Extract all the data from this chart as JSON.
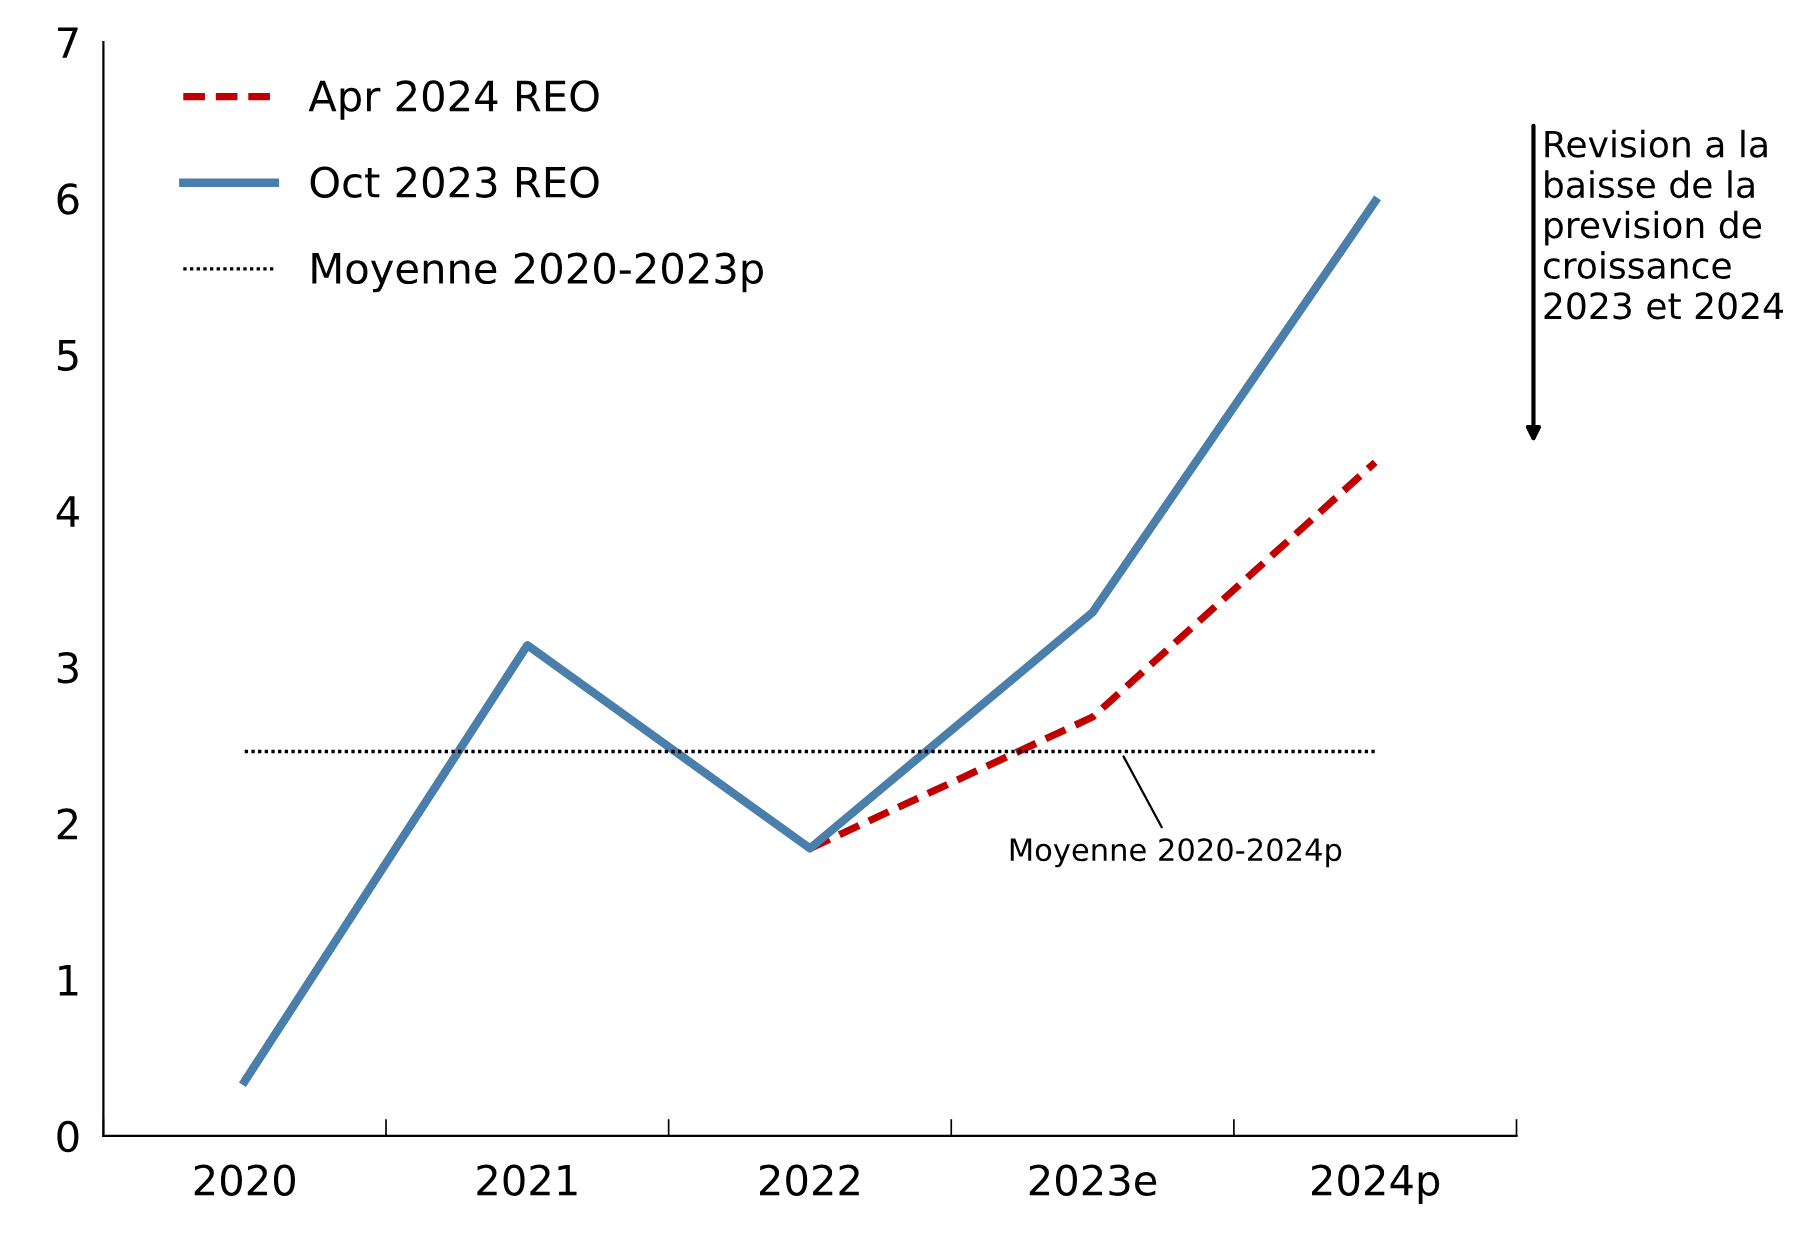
{
  "chart_data": {
    "type": "line",
    "categories": [
      "2020",
      "2021",
      "2022",
      "2023e",
      "2024p"
    ],
    "series": [
      {
        "name": "Apr 2024 REO",
        "color": "#c00000",
        "line_style": "dashed",
        "values": [
          null,
          null,
          1.84,
          2.68,
          4.31
        ]
      },
      {
        "name": "Oct 2023 REO",
        "color": "#4a7eab",
        "line_style": "solid",
        "values": [
          0.35,
          3.14,
          1.84,
          3.35,
          5.98
        ]
      },
      {
        "name": "Moyenne 2020-2023p",
        "color": "#000000",
        "line_style": "dotted",
        "values": [
          2.46,
          2.46,
          2.46,
          2.46,
          2.46
        ]
      }
    ],
    "ylim": [
      0,
      7
    ],
    "yticks": [
      0,
      1,
      2,
      3,
      4,
      5,
      6,
      7
    ],
    "grid": false,
    "legend": "top left",
    "marker": "none",
    "annotations": [
      {
        "text": "Moyenne 2020-2024p",
        "x": "2023e",
        "y": 2.46
      },
      "Revision a la baisse de la prevision de croissance 2023 et 2024"
    ]
  }
}
